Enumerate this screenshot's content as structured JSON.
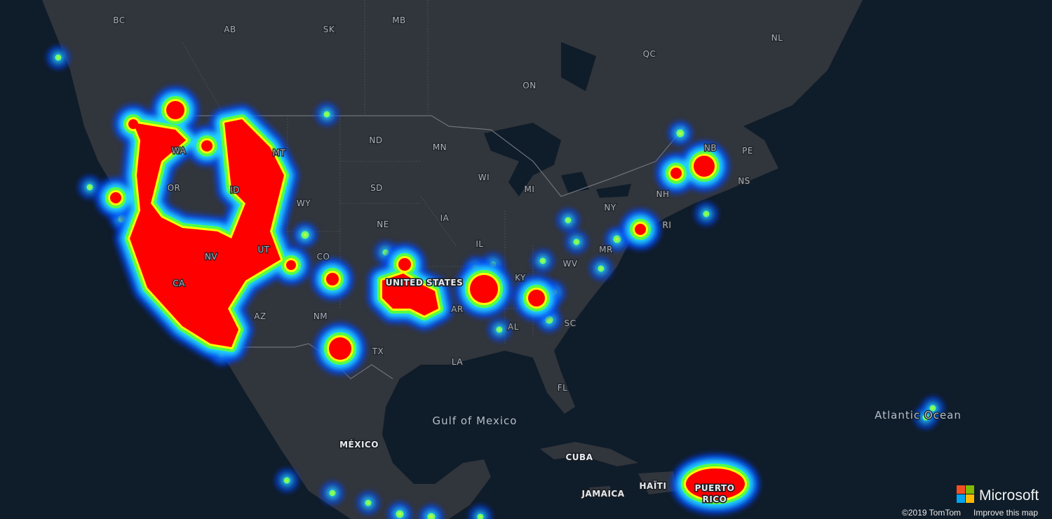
{
  "map": {
    "labels": [
      "BC",
      "AB",
      "SK",
      "MB",
      "NL",
      "QC",
      "ON",
      "NB",
      "PE",
      "NS",
      "ND",
      "MN",
      "WI",
      "MI",
      "NY",
      "NH",
      "RI",
      "MR",
      "WV",
      "KY",
      "SD",
      "NE",
      "IA",
      "IL",
      "WA",
      "OR",
      "ID",
      "MT",
      "WY",
      "NV",
      "UT",
      "CO",
      "CA",
      "AZ",
      "NM",
      "TX",
      "AR",
      "LA",
      "AL",
      "SC",
      "FL",
      "UNITED STATES",
      "Gulf of Mexico",
      "MÉXICO",
      "CUBA",
      "JAMAICA",
      "HAÏTI",
      "Atlantic Ocean"
    ],
    "puerto_rico": [
      "PUERTO",
      "RICO"
    ]
  },
  "logo": "Microsoft",
  "attribution": {
    "copyright": "©2019 TomTom",
    "link": "Improve this map"
  }
}
